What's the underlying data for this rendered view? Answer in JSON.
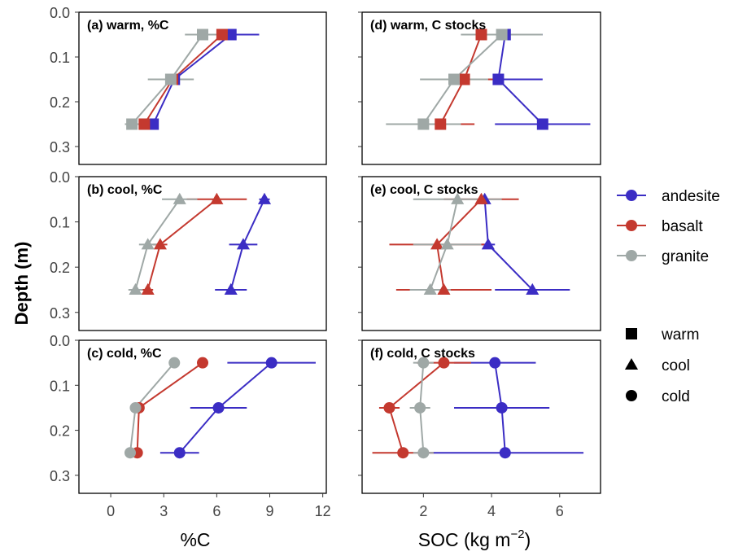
{
  "figure": {
    "y_axis_label": "Depth (m)",
    "x_axis_labels": {
      "left": "%C",
      "right_prefix": "SOC (kg m",
      "right_exp": "−2",
      "right_suffix": ")"
    },
    "y_ticks": [
      "0.0",
      "0.1",
      "0.2",
      "0.3"
    ],
    "x_ticks_left": [
      "0",
      "3",
      "6",
      "9",
      "12"
    ],
    "x_ticks_right": [
      "2",
      "4",
      "6"
    ],
    "legend_series": [
      {
        "name": "andesite",
        "color": "#3b2dc4"
      },
      {
        "name": "basalt",
        "color": "#c4392f"
      },
      {
        "name": "granite",
        "color": "#9fa8a6"
      }
    ],
    "legend_shapes": [
      {
        "name": "warm",
        "shape": "square"
      },
      {
        "name": "cool",
        "shape": "triangle"
      },
      {
        "name": "cold",
        "shape": "circle"
      }
    ]
  },
  "chart_data": [
    {
      "type": "line",
      "title": "(a) warm, %C",
      "shape": "square",
      "xlim": [
        -1.8,
        12.2
      ],
      "ylim": [
        0.0,
        0.34
      ],
      "series": [
        {
          "name": "andesite",
          "points": [
            {
              "x": 6.8,
              "y": 0.05,
              "err": 1.6
            },
            {
              "x": 3.6,
              "y": 0.15,
              "err": 0.5
            },
            {
              "x": 2.4,
              "y": 0.25,
              "err": 0.3
            }
          ]
        },
        {
          "name": "basalt",
          "points": [
            {
              "x": 6.3,
              "y": 0.05,
              "err": 0.5
            },
            {
              "x": 3.5,
              "y": 0.15,
              "err": 0.4
            },
            {
              "x": 1.9,
              "y": 0.25,
              "err": 0.4
            }
          ]
        },
        {
          "name": "granite",
          "points": [
            {
              "x": 5.2,
              "y": 0.05,
              "err": 1.0
            },
            {
              "x": 3.4,
              "y": 0.15,
              "err": 1.3
            },
            {
              "x": 1.2,
              "y": 0.25,
              "err": 0.4
            }
          ]
        }
      ]
    },
    {
      "type": "line",
      "title": "(b) cool, %C",
      "shape": "triangle",
      "xlim": [
        -1.8,
        12.2
      ],
      "ylim": [
        0.0,
        0.34
      ],
      "series": [
        {
          "name": "andesite",
          "points": [
            {
              "x": 8.7,
              "y": 0.05,
              "err": 0.3
            },
            {
              "x": 7.5,
              "y": 0.15,
              "err": 0.8
            },
            {
              "x": 6.8,
              "y": 0.25,
              "err": 0.9
            }
          ]
        },
        {
          "name": "basalt",
          "points": [
            {
              "x": 6.0,
              "y": 0.05,
              "err": 1.7
            },
            {
              "x": 2.8,
              "y": 0.15,
              "err": 0.4
            },
            {
              "x": 2.1,
              "y": 0.25,
              "err": 0.3
            }
          ]
        },
        {
          "name": "granite",
          "points": [
            {
              "x": 3.9,
              "y": 0.05,
              "err": 1.0
            },
            {
              "x": 2.1,
              "y": 0.15,
              "err": 0.5
            },
            {
              "x": 1.4,
              "y": 0.25,
              "err": 0.4
            }
          ]
        }
      ]
    },
    {
      "type": "line",
      "title": "(c) cold, %C",
      "shape": "circle",
      "xlim": [
        -1.8,
        12.2
      ],
      "ylim": [
        0.0,
        0.34
      ],
      "series": [
        {
          "name": "andesite",
          "points": [
            {
              "x": 9.1,
              "y": 0.05,
              "err": 2.5
            },
            {
              "x": 6.1,
              "y": 0.15,
              "err": 1.6
            },
            {
              "x": 3.9,
              "y": 0.25,
              "err": 1.1
            }
          ]
        },
        {
          "name": "basalt",
          "points": [
            {
              "x": 5.2,
              "y": 0.05,
              "err": 0.2
            },
            {
              "x": 1.6,
              "y": 0.15,
              "err": 0.2
            },
            {
              "x": 1.5,
              "y": 0.25,
              "err": 0.2
            }
          ]
        },
        {
          "name": "granite",
          "points": [
            {
              "x": 3.6,
              "y": 0.05,
              "err": 0.2
            },
            {
              "x": 1.4,
              "y": 0.15,
              "err": 0.2
            },
            {
              "x": 1.1,
              "y": 0.25,
              "err": 0.2
            }
          ]
        }
      ]
    },
    {
      "type": "line",
      "title": "(d) warm, C stocks",
      "shape": "square",
      "xlim": [
        0.2,
        7.2
      ],
      "ylim": [
        0.0,
        0.34
      ],
      "series": [
        {
          "name": "andesite",
          "points": [
            {
              "x": 4.4,
              "y": 0.05,
              "err": 1.1
            },
            {
              "x": 4.2,
              "y": 0.15,
              "err": 1.3
            },
            {
              "x": 5.5,
              "y": 0.25,
              "err": 1.4
            }
          ]
        },
        {
          "name": "basalt",
          "points": [
            {
              "x": 3.7,
              "y": 0.05,
              "err": 0.5
            },
            {
              "x": 3.2,
              "y": 0.15,
              "err": 0.9
            },
            {
              "x": 2.5,
              "y": 0.25,
              "err": 1.0
            }
          ]
        },
        {
          "name": "granite",
          "points": [
            {
              "x": 4.3,
              "y": 0.05,
              "err": 1.2
            },
            {
              "x": 2.9,
              "y": 0.15,
              "err": 1.0
            },
            {
              "x": 2.0,
              "y": 0.25,
              "err": 1.1
            }
          ]
        }
      ]
    },
    {
      "type": "line",
      "title": "(e) cool, C stocks",
      "shape": "triangle",
      "xlim": [
        0.2,
        7.2
      ],
      "ylim": [
        0.0,
        0.34
      ],
      "series": [
        {
          "name": "andesite",
          "points": [
            {
              "x": 3.8,
              "y": 0.05,
              "err": 0.1
            },
            {
              "x": 3.9,
              "y": 0.15,
              "err": 0.2
            },
            {
              "x": 5.2,
              "y": 0.25,
              "err": 1.1
            }
          ]
        },
        {
          "name": "basalt",
          "points": [
            {
              "x": 3.7,
              "y": 0.05,
              "err": 1.1
            },
            {
              "x": 2.4,
              "y": 0.15,
              "err": 1.4
            },
            {
              "x": 2.6,
              "y": 0.25,
              "err": 1.4
            }
          ]
        },
        {
          "name": "granite",
          "points": [
            {
              "x": 3.0,
              "y": 0.05,
              "err": 1.3
            },
            {
              "x": 2.7,
              "y": 0.15,
              "err": 1.0
            },
            {
              "x": 2.2,
              "y": 0.25,
              "err": 0.6
            }
          ]
        }
      ]
    },
    {
      "type": "line",
      "title": "(f) cold, C stocks",
      "shape": "circle",
      "xlim": [
        0.2,
        7.2
      ],
      "ylim": [
        0.0,
        0.34
      ],
      "series": [
        {
          "name": "andesite",
          "points": [
            {
              "x": 4.1,
              "y": 0.05,
              "err": 1.2
            },
            {
              "x": 4.3,
              "y": 0.15,
              "err": 1.4
            },
            {
              "x": 4.4,
              "y": 0.25,
              "err": 2.3
            }
          ]
        },
        {
          "name": "basalt",
          "points": [
            {
              "x": 2.6,
              "y": 0.05,
              "err": 0.8
            },
            {
              "x": 1.0,
              "y": 0.15,
              "err": 0.3
            },
            {
              "x": 1.4,
              "y": 0.25,
              "err": 0.9
            }
          ]
        },
        {
          "name": "granite",
          "points": [
            {
              "x": 2.0,
              "y": 0.05,
              "err": 0.3
            },
            {
              "x": 1.9,
              "y": 0.15,
              "err": 0.3
            },
            {
              "x": 2.0,
              "y": 0.25,
              "err": 0.3
            }
          ]
        }
      ]
    }
  ]
}
